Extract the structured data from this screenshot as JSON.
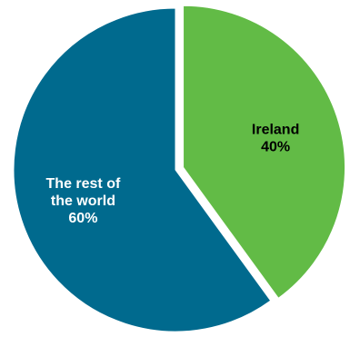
{
  "chart_data": {
    "type": "pie",
    "title": "",
    "start_angle_deg": 0,
    "direction": "clockwise",
    "slices": [
      {
        "label_lines": [
          "Ireland"
        ],
        "value": 40,
        "value_label": "40%",
        "color": "#62bb46",
        "label_color": "#000000",
        "exploded": true
      },
      {
        "label_lines": [
          "The rest of",
          "the world"
        ],
        "value": 60,
        "value_label": "60%",
        "color": "#006a8e",
        "label_color": "#ffffff",
        "exploded": false
      }
    ]
  },
  "colors": {
    "background": "#ffffff",
    "slice_border": "#ffffff"
  }
}
